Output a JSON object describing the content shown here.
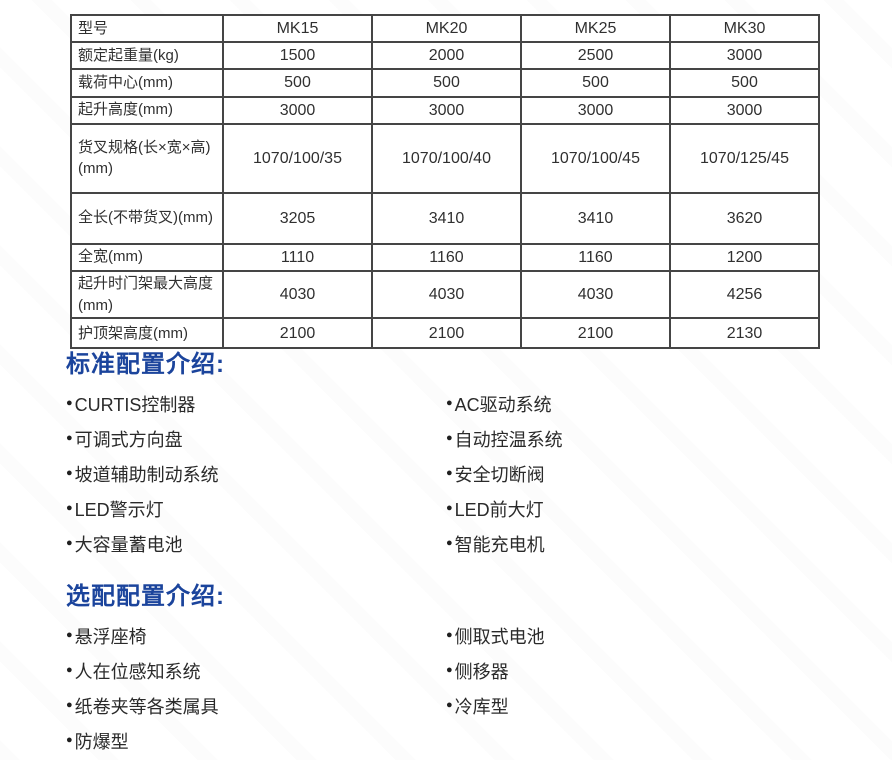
{
  "icons": {
    "bullet": "●"
  },
  "colors": {
    "heading_blue": "#1b449c",
    "table_border": "#454545",
    "body_text": "#2a2a2a"
  },
  "table": {
    "header_label": "型号",
    "models": [
      "MK15",
      "MK20",
      "MK25",
      "MK30"
    ],
    "rows": [
      {
        "label": "额定起重量(kg)",
        "values": [
          "1500",
          "2000",
          "2500",
          "3000"
        ]
      },
      {
        "label": "载荷中心(mm)",
        "values": [
          "500",
          "500",
          "500",
          "500"
        ]
      },
      {
        "label": "起升高度(mm)",
        "values": [
          "3000",
          "3000",
          "3000",
          "3000"
        ]
      },
      {
        "label": "货叉规格(长×宽×高)(mm)",
        "values": [
          "1070/100/35",
          "1070/100/40",
          "1070/100/45",
          "1070/125/45"
        ]
      },
      {
        "label": "全长(不带货叉)(mm)",
        "values": [
          "3205",
          "3410",
          "3410",
          "3620"
        ]
      },
      {
        "label": "全宽(mm)",
        "values": [
          "1110",
          "1160",
          "1160",
          "1200"
        ]
      },
      {
        "label": "起升时门架最大高度(mm)",
        "values": [
          "4030",
          "4030",
          "4030",
          "4256"
        ]
      },
      {
        "label": "护顶架高度(mm)",
        "values": [
          "2100",
          "2100",
          "2100",
          "2130"
        ]
      }
    ]
  },
  "standard_config": {
    "heading": "标准配置介绍:",
    "left_items": [
      "CURTIS控制器",
      "可调式方向盘",
      "坡道辅助制动系统",
      "LED警示灯",
      "大容量蓄电池"
    ],
    "right_items": [
      "AC驱动系统",
      "自动控温系统",
      "安全切断阀",
      "LED前大灯",
      "智能充电机"
    ]
  },
  "optional_config": {
    "heading": "选配配置介绍:",
    "left_items": [
      "悬浮座椅",
      "人在位感知系统",
      "纸卷夹等各类属具",
      "防爆型"
    ],
    "right_items": [
      "侧取式电池",
      "侧移器",
      "冷库型"
    ]
  }
}
